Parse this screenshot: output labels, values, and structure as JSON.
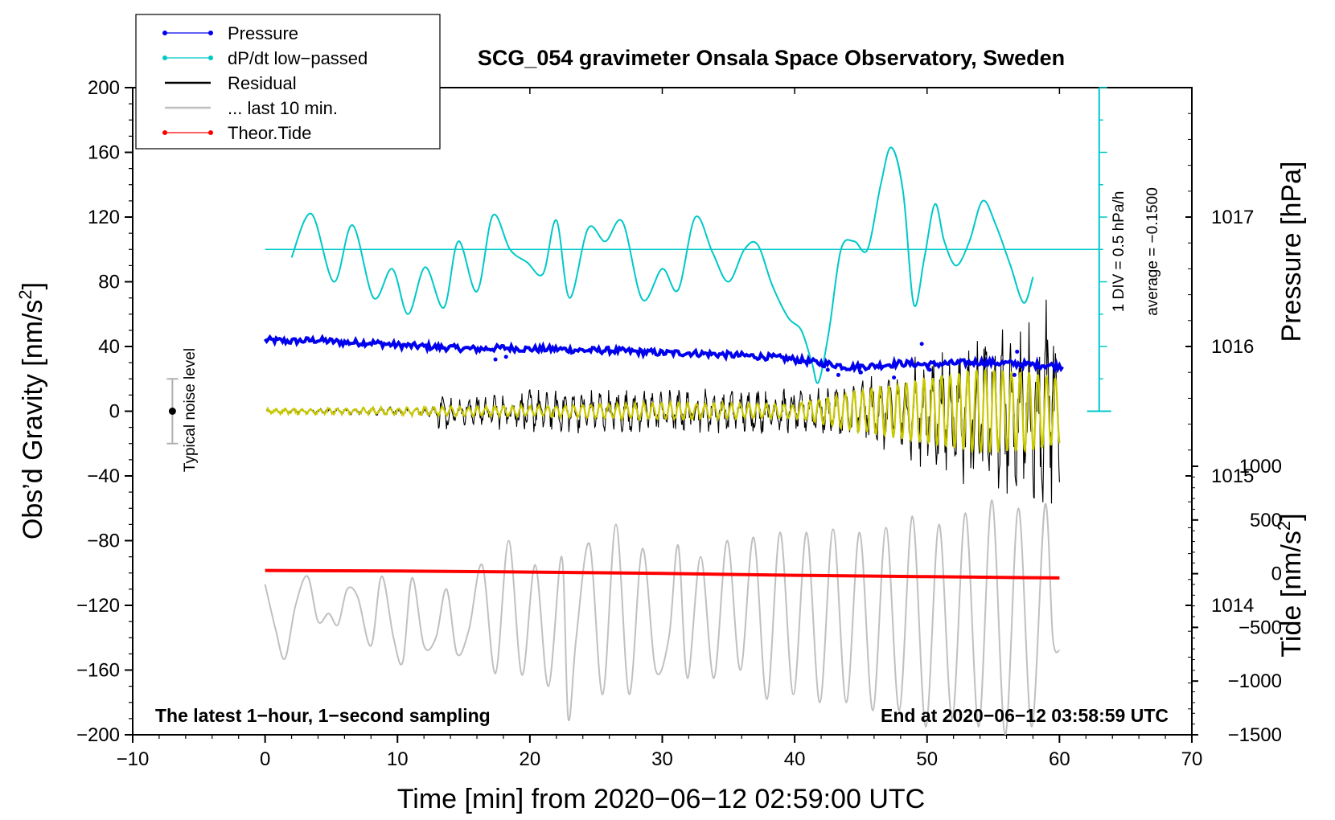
{
  "chart_data": {
    "type": "line",
    "title": "SCG_054 gravimeter Onsala Space Observatory, Sweden",
    "xlabel": "Time [min] from 2020−06−12 02:59:00 UTC",
    "ylabel_left_main": "Obs’d Gravity [nm/s",
    "ylabel_left_sup": "2",
    "ylabel_left_end": "]",
    "ylabel_right_pressure": "Pressure [hPa]",
    "ylabel_right_tide_main": "Tide [nm/s",
    "ylabel_right_tide_sup": "2",
    "ylabel_right_tide_end": "]",
    "xlim": [
      -10,
      70
    ],
    "ylim": [
      -200,
      200
    ],
    "pressure_lim": [
      1013,
      1018
    ],
    "tide_lim": [
      -1500,
      1000
    ],
    "x_ticks": [
      "−10",
      "0",
      "10",
      "20",
      "30",
      "40",
      "50",
      "60",
      "70"
    ],
    "x_tick_values": [
      -10,
      0,
      10,
      20,
      30,
      40,
      50,
      60,
      70
    ],
    "y_ticks": [
      "200",
      "160",
      "120",
      "80",
      "40",
      "0",
      "−40",
      "−80",
      "−120",
      "−160",
      "−200"
    ],
    "y_tick_values": [
      200,
      160,
      120,
      80,
      40,
      0,
      -40,
      -80,
      -120,
      -160,
      -200
    ],
    "pressure_ticks": [
      "1017",
      "1016",
      "1015",
      "1014"
    ],
    "pressure_tick_values": [
      1017,
      1016,
      1015,
      1014
    ],
    "tide_ticks": [
      "1000",
      "500",
      "0",
      "−500",
      "−1000",
      "−1500"
    ],
    "tide_tick_values": [
      1000,
      500,
      0,
      -500,
      -1000,
      -1500
    ],
    "legend": [
      {
        "label": "Pressure",
        "color": "#0000ee",
        "marker": true
      },
      {
        "label": "dP/dt low−passed",
        "color": "#00c8c8",
        "marker": true
      },
      {
        "label": "Residual",
        "color": "#000000",
        "marker": false
      },
      {
        "label": "... last 10 min.",
        "color": "#c0c0c0",
        "marker": false
      },
      {
        "label": "Theor.Tide",
        "color": "#ff0000",
        "marker": true
      }
    ],
    "legend_position": "top-left",
    "annotations": {
      "bottom_left": "The latest 1−hour, 1−second sampling",
      "bottom_right": "End at 2020−06−12 03:58:59 UTC",
      "noise": "Typical noise level",
      "div_scale": "1 DIV = 0.5 hPa/h",
      "average": "average = −0.1500"
    },
    "noise_bar": {
      "x": -7,
      "center": 0,
      "low": -20,
      "high": 20
    },
    "dpdt_axis": {
      "x": 63,
      "y_bottom": 0,
      "y_top": 200,
      "baseline_y": 100
    },
    "series": [
      {
        "name": "Pressure",
        "axis": "pressure",
        "color": "#0000ee",
        "x": [
          0,
          2,
          4,
          6,
          8,
          10,
          12,
          14,
          16,
          18,
          20,
          22,
          24,
          26,
          28,
          30,
          32,
          34,
          36,
          38,
          40,
          42,
          43,
          44,
          46,
          48,
          50,
          52,
          54,
          56,
          58,
          60
        ],
        "values": [
          1016.05,
          1016.04,
          1016.05,
          1016.03,
          1016.03,
          1016.01,
          1016.0,
          1015.99,
          1015.98,
          1015.99,
          1015.98,
          1015.98,
          1015.97,
          1015.97,
          1015.96,
          1015.95,
          1015.95,
          1015.94,
          1015.93,
          1015.92,
          1015.9,
          1015.87,
          1015.86,
          1015.84,
          1015.85,
          1015.87,
          1015.86,
          1015.87,
          1015.88,
          1015.87,
          1015.86,
          1015.85
        ]
      },
      {
        "name": "dP/dt low−passed",
        "axis": "dpdt",
        "color": "#00c8c8",
        "x": [
          2,
          3.5,
          5.2,
          6.6,
          8.2,
          9.6,
          10.8,
          12.1,
          13.5,
          14.6,
          16,
          17.2,
          18.5,
          19.8,
          21,
          22,
          23,
          24.4,
          25.7,
          27,
          28.5,
          30,
          31.2,
          32.5,
          33.8,
          35,
          36.2,
          37.2,
          38.3,
          39.5,
          40.5,
          41.3,
          41.8,
          42.6,
          43.5,
          44.5,
          45.5,
          46.5,
          47.3,
          48.2,
          49,
          49.8,
          50.6,
          51.3,
          52.2,
          53.2,
          54.2,
          55.2,
          56.3,
          57.3,
          58
        ],
        "values": [
          95,
          122,
          80,
          115,
          70,
          88,
          60,
          89,
          64,
          105,
          74,
          121,
          100,
          92,
          85,
          118,
          70,
          113,
          105,
          117,
          69,
          88,
          75,
          120,
          98,
          80,
          100,
          103,
          78,
          58,
          50,
          30,
          18,
          50,
          100,
          105,
          100,
          140,
          163,
          135,
          66,
          95,
          128,
          105,
          90,
          105,
          130,
          115,
          90,
          67,
          83
        ]
      },
      {
        "name": "Residual",
        "axis": "gravity",
        "color": "#000000",
        "x": [
          0,
          5,
          10,
          12.9,
          13,
          15,
          20,
          25,
          30,
          35,
          40,
          43,
          45,
          48,
          50,
          52,
          54,
          56,
          58,
          59.4,
          60
        ],
        "amplitude": [
          1,
          2,
          3,
          4,
          13,
          9,
          14,
          14,
          14,
          15,
          14,
          16,
          22,
          32,
          40,
          45,
          50,
          54,
          58,
          82,
          50
        ]
      },
      {
        "name": "Residual (yellow)",
        "axis": "gravity",
        "color": "#c8c800",
        "x": [
          0,
          10,
          20,
          30,
          40,
          44,
          46,
          50,
          54,
          58,
          60
        ],
        "amplitude": [
          1,
          2,
          3,
          5,
          4,
          11,
          14,
          20,
          26,
          24,
          20
        ]
      },
      {
        "name": "... last 10 min.",
        "axis": "gravity",
        "color": "#c0c0c0",
        "x": [
          0,
          0.8,
          1.5,
          2.3,
          3.2,
          4.0,
          4.8,
          5.5,
          6.2,
          7.0,
          8.0,
          8.8,
          9.7,
          10.4,
          11.1,
          12.0,
          12.9,
          13.7,
          14.5,
          15.4,
          16.4,
          17.4,
          18.4,
          19.4,
          20.4,
          21.4,
          22.4,
          22.9,
          23.5,
          24.5,
          25.5,
          26.5,
          27.5,
          28.5,
          29.5,
          30.5,
          31.2,
          31.9,
          32.9,
          33.9,
          34.9,
          35.9,
          36.9,
          37.9,
          38.9,
          39.9,
          40.9,
          41.9,
          42.9,
          43.9,
          44.9,
          45.9,
          46.9,
          47.9,
          48.9,
          49.9,
          50.9,
          51.9,
          52.9,
          53.9,
          54.9,
          55.9,
          56.9,
          57.9,
          58.9,
          59.5,
          60
        ],
        "values": [
          -107,
          -135,
          -153,
          -120,
          -102,
          -130,
          -125,
          -132,
          -110,
          -115,
          -145,
          -102,
          -140,
          -155,
          -103,
          -145,
          -140,
          -110,
          -150,
          -135,
          -95,
          -162,
          -80,
          -163,
          -95,
          -170,
          -90,
          -190,
          -140,
          -82,
          -175,
          -70,
          -175,
          -85,
          -160,
          -140,
          -83,
          -165,
          -90,
          -165,
          -80,
          -160,
          -78,
          -178,
          -75,
          -175,
          -75,
          -180,
          -73,
          -180,
          -75,
          -185,
          -72,
          -185,
          -65,
          -195,
          -70,
          -190,
          -63,
          -195,
          -55,
          -200,
          -60,
          -195,
          -58,
          -140,
          -148
        ]
      },
      {
        "name": "Theor.Tide",
        "axis": "tide",
        "color": "#ff0000",
        "x": [
          0,
          10,
          20,
          30,
          40,
          50,
          60
        ],
        "values": [
          30,
          25,
          15,
          2,
          -15,
          -28,
          -40
        ]
      }
    ]
  }
}
